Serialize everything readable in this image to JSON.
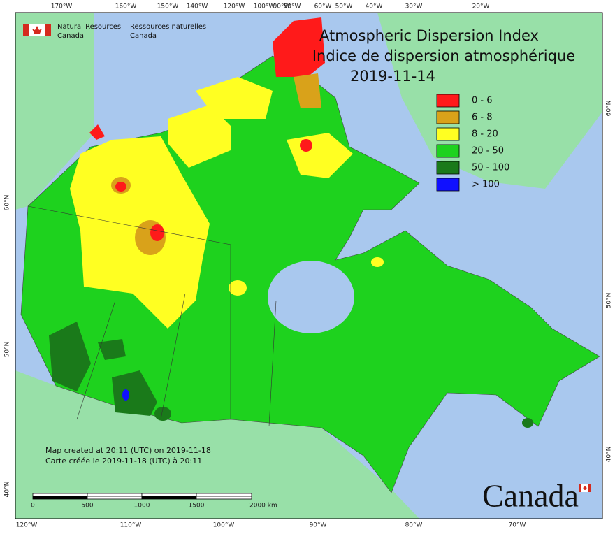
{
  "header": {
    "agency_en": [
      "Natural Resources",
      "Canada"
    ],
    "agency_fr": [
      "Ressources naturelles",
      "Canada"
    ]
  },
  "title": [
    "Atmospheric Dispersion Index",
    "Indice de dispersion atmosphérique"
  ],
  "date": "2019-11-14",
  "legend": [
    {
      "label": "0 - 6",
      "color": "#ff1a1a"
    },
    {
      "label": "6 - 8",
      "color": "#d9a21a"
    },
    {
      "label": "8 - 20",
      "color": "#ffff22"
    },
    {
      "label": "20 - 50",
      "color": "#1ed21e"
    },
    {
      "label": "50 - 100",
      "color": "#1a7a1a"
    },
    {
      "label": "> 100",
      "color": "#1010ff"
    }
  ],
  "graticule": {
    "top": [
      "170°W",
      "160°W",
      "150°W",
      "140°W",
      "120°W",
      "100°W",
      "90°W",
      "80°W",
      "60°W",
      "50°W",
      "40°W",
      "30°W",
      "20°W"
    ],
    "bottom": [
      "120°W",
      "110°W",
      "100°W",
      "90°W",
      "80°W",
      "70°W"
    ],
    "left": [
      "60°N",
      "50°N",
      "40°N"
    ],
    "right": [
      "60°N",
      "50°N",
      "40°N"
    ]
  },
  "scale": [
    "0",
    "500",
    "1000",
    "1500",
    "2000 km"
  ],
  "notes": [
    "Map created at 20:11 (UTC) on 2019-11-18",
    "Carte créée le 2019-11-18 (UTC) à 20:11"
  ],
  "wordmark": "Canada"
}
